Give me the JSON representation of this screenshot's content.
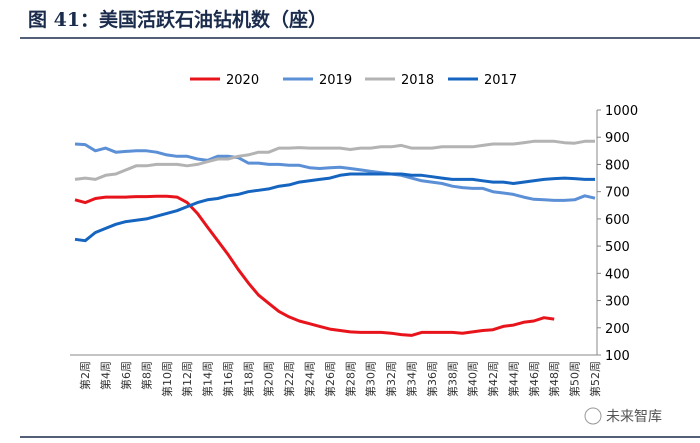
{
  "chart_data": {
    "type": "line",
    "title": "图 41：美国活跃石油钻机数（座）",
    "watermark": "未来智库",
    "categories": [
      null,
      "第2周",
      null,
      "第4周",
      null,
      "第6周",
      null,
      "第8周",
      null,
      "第10周",
      null,
      "第12周",
      null,
      "第14周",
      null,
      "第16周",
      null,
      "第18周",
      null,
      "第20周",
      null,
      "第22周",
      null,
      "第24周",
      null,
      "第26周",
      null,
      "第28周",
      null,
      "第30周",
      null,
      "第32周",
      null,
      "第34周",
      null,
      "第36周",
      null,
      "第38周",
      null,
      "第40周",
      null,
      "第42周",
      null,
      "第44周",
      null,
      "第46周",
      null,
      "第48周",
      null,
      "第50周",
      null,
      "第52周"
    ],
    "ylim": [
      100,
      1000
    ],
    "yticks": [
      100,
      200,
      300,
      400,
      500,
      600,
      700,
      800,
      900,
      1000
    ],
    "legend": "top",
    "series": [
      {
        "name": "2020",
        "color": "#e8141b",
        "values": [
          670,
          660,
          675,
          680,
          680,
          680,
          682,
          682,
          683,
          683,
          680,
          660,
          620,
          570,
          520,
          470,
          415,
          365,
          320,
          290,
          260,
          240,
          225,
          215,
          205,
          195,
          190,
          185,
          183,
          183,
          183,
          180,
          175,
          172,
          183,
          183,
          183,
          183,
          180,
          185,
          190,
          193,
          205,
          210,
          220,
          225,
          237,
          232,
          null,
          null,
          null,
          null
        ]
      },
      {
        "name": "2019",
        "color": "#5b8fd6",
        "values": [
          875,
          873,
          850,
          860,
          845,
          848,
          850,
          850,
          845,
          835,
          830,
          830,
          820,
          815,
          830,
          830,
          825,
          805,
          805,
          800,
          800,
          797,
          797,
          788,
          785,
          788,
          790,
          785,
          780,
          775,
          770,
          765,
          760,
          750,
          740,
          735,
          730,
          720,
          715,
          712,
          712,
          700,
          695,
          690,
          680,
          672,
          670,
          668,
          668,
          670,
          685,
          676
        ]
      },
      {
        "name": "2018",
        "color": "#b3b3b3",
        "values": [
          745,
          750,
          745,
          760,
          765,
          780,
          795,
          795,
          800,
          800,
          800,
          795,
          800,
          810,
          820,
          820,
          830,
          835,
          845,
          845,
          860,
          860,
          862,
          860,
          860,
          860,
          860,
          855,
          860,
          860,
          865,
          865,
          870,
          860,
          860,
          860,
          865,
          865,
          865,
          865,
          870,
          875,
          875,
          875,
          880,
          885,
          885,
          885,
          880,
          878,
          885,
          885
        ]
      },
      {
        "name": "2017",
        "color": "#1565c0",
        "values": [
          525,
          520,
          550,
          565,
          580,
          590,
          595,
          600,
          610,
          620,
          630,
          645,
          660,
          670,
          675,
          685,
          690,
          700,
          705,
          710,
          720,
          725,
          735,
          740,
          745,
          750,
          760,
          765,
          765,
          765,
          765,
          765,
          765,
          760,
          760,
          755,
          750,
          745,
          745,
          745,
          740,
          735,
          735,
          730,
          735,
          740,
          745,
          748,
          750,
          748,
          745,
          745
        ]
      }
    ]
  }
}
